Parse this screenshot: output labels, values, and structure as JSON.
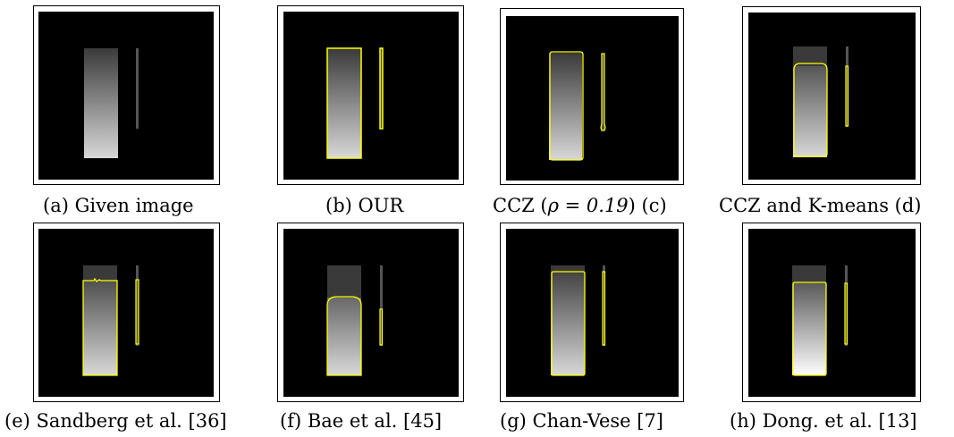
{
  "figure": {
    "panels": [
      {
        "id": "a",
        "caption": "(a) Given image",
        "method": "Given image",
        "contour_color": ""
      },
      {
        "id": "b",
        "caption": "(b) OUR",
        "method": "OUR",
        "contour_color": "#ffff00"
      },
      {
        "id": "c",
        "caption_prefix": "CCZ (",
        "caption_math": "ρ = 0.19",
        "caption_suffix": ") (c)",
        "method": "CCZ",
        "contour_color": "#ffff00"
      },
      {
        "id": "d",
        "caption": "CCZ and K-means (d)",
        "method": "CCZ and K-means",
        "contour_color": "#ffff00"
      },
      {
        "id": "e",
        "caption": "(e) Sandberg et al. [36]",
        "method": "Sandberg et al. [36]",
        "contour_color": "#ffff00"
      },
      {
        "id": "f",
        "caption": "(f) Bae et al. [45]",
        "method": "Bae et al. [45]",
        "contour_color": "#ffff00"
      },
      {
        "id": "g",
        "caption": "(g) Chan-Vese [7]",
        "method": "Chan-Vese [7]",
        "contour_color": "#ffff00"
      },
      {
        "id": "h",
        "caption": "(h) Dong. et al. [13]",
        "method": "Dong. et al. [13]",
        "contour_color": "#ffff00"
      }
    ],
    "colors": {
      "background": "#000000",
      "contour": "#ffff00",
      "frame": "#000000"
    }
  }
}
